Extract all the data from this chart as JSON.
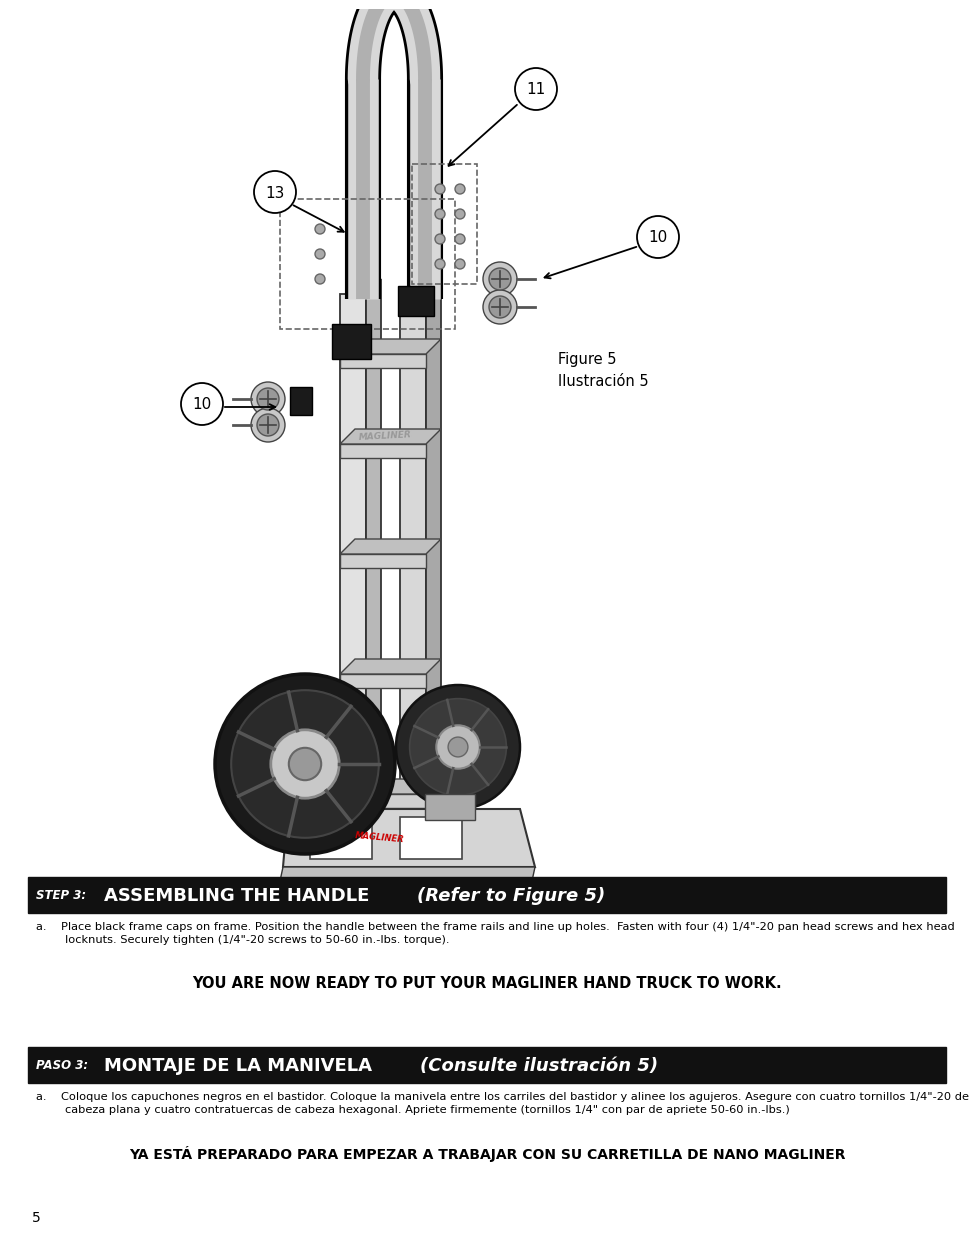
{
  "bg_color": "#ffffff",
  "page_width": 9.54,
  "page_height": 12.35,
  "step3_bar_color": "#111111",
  "paso3_bar_color": "#111111",
  "step3_prefix": "STEP 3:",
  "step3_title": "ASSEMBLING THE HANDLE ",
  "step3_italic": "(Refer to Figure 5)",
  "step3_text_a": "a.    Place black frame caps on frame. Position the handle between the frame rails and line up holes.  Fasten with four (4) 1/4\"-20 pan head screws and hex head\n        locknuts. Securely tighten (1/4\"-20 screws to 50-60 in.-lbs. torque).",
  "english_bold": "YOU ARE NOW READY TO PUT YOUR MAGLINER HAND TRUCK TO WORK.",
  "paso3_prefix": "PASO 3:",
  "paso3_title": "MONTAJE DE LA MANIVELA ",
  "paso3_italic": "(Consulte ilustración 5)",
  "paso3_text_a": "a.    Coloque los capuchones negros en el bastidor. Coloque la manivela entre los carriles del bastidor y alinee los agujeros. Asegure con cuatro tornillos 1/4\"-20 de\n        cabeza plana y cuatro contratuercas de cabeza hexagonal. Apriete firmemente (tornillos 1/4\" con par de apriete 50-60 in.-lbs.)",
  "spanish_bold": "YA ESTÁ PREPARADO PARA EMPEZAR A TRABAJAR CON SU CARRETILLA DE NANO MAGLINER",
  "page_number": "5",
  "figure_label": "Figure 5\nIlustración 5",
  "label_11": "11",
  "label_13": "13",
  "label_10a": "10",
  "label_10b": "10"
}
